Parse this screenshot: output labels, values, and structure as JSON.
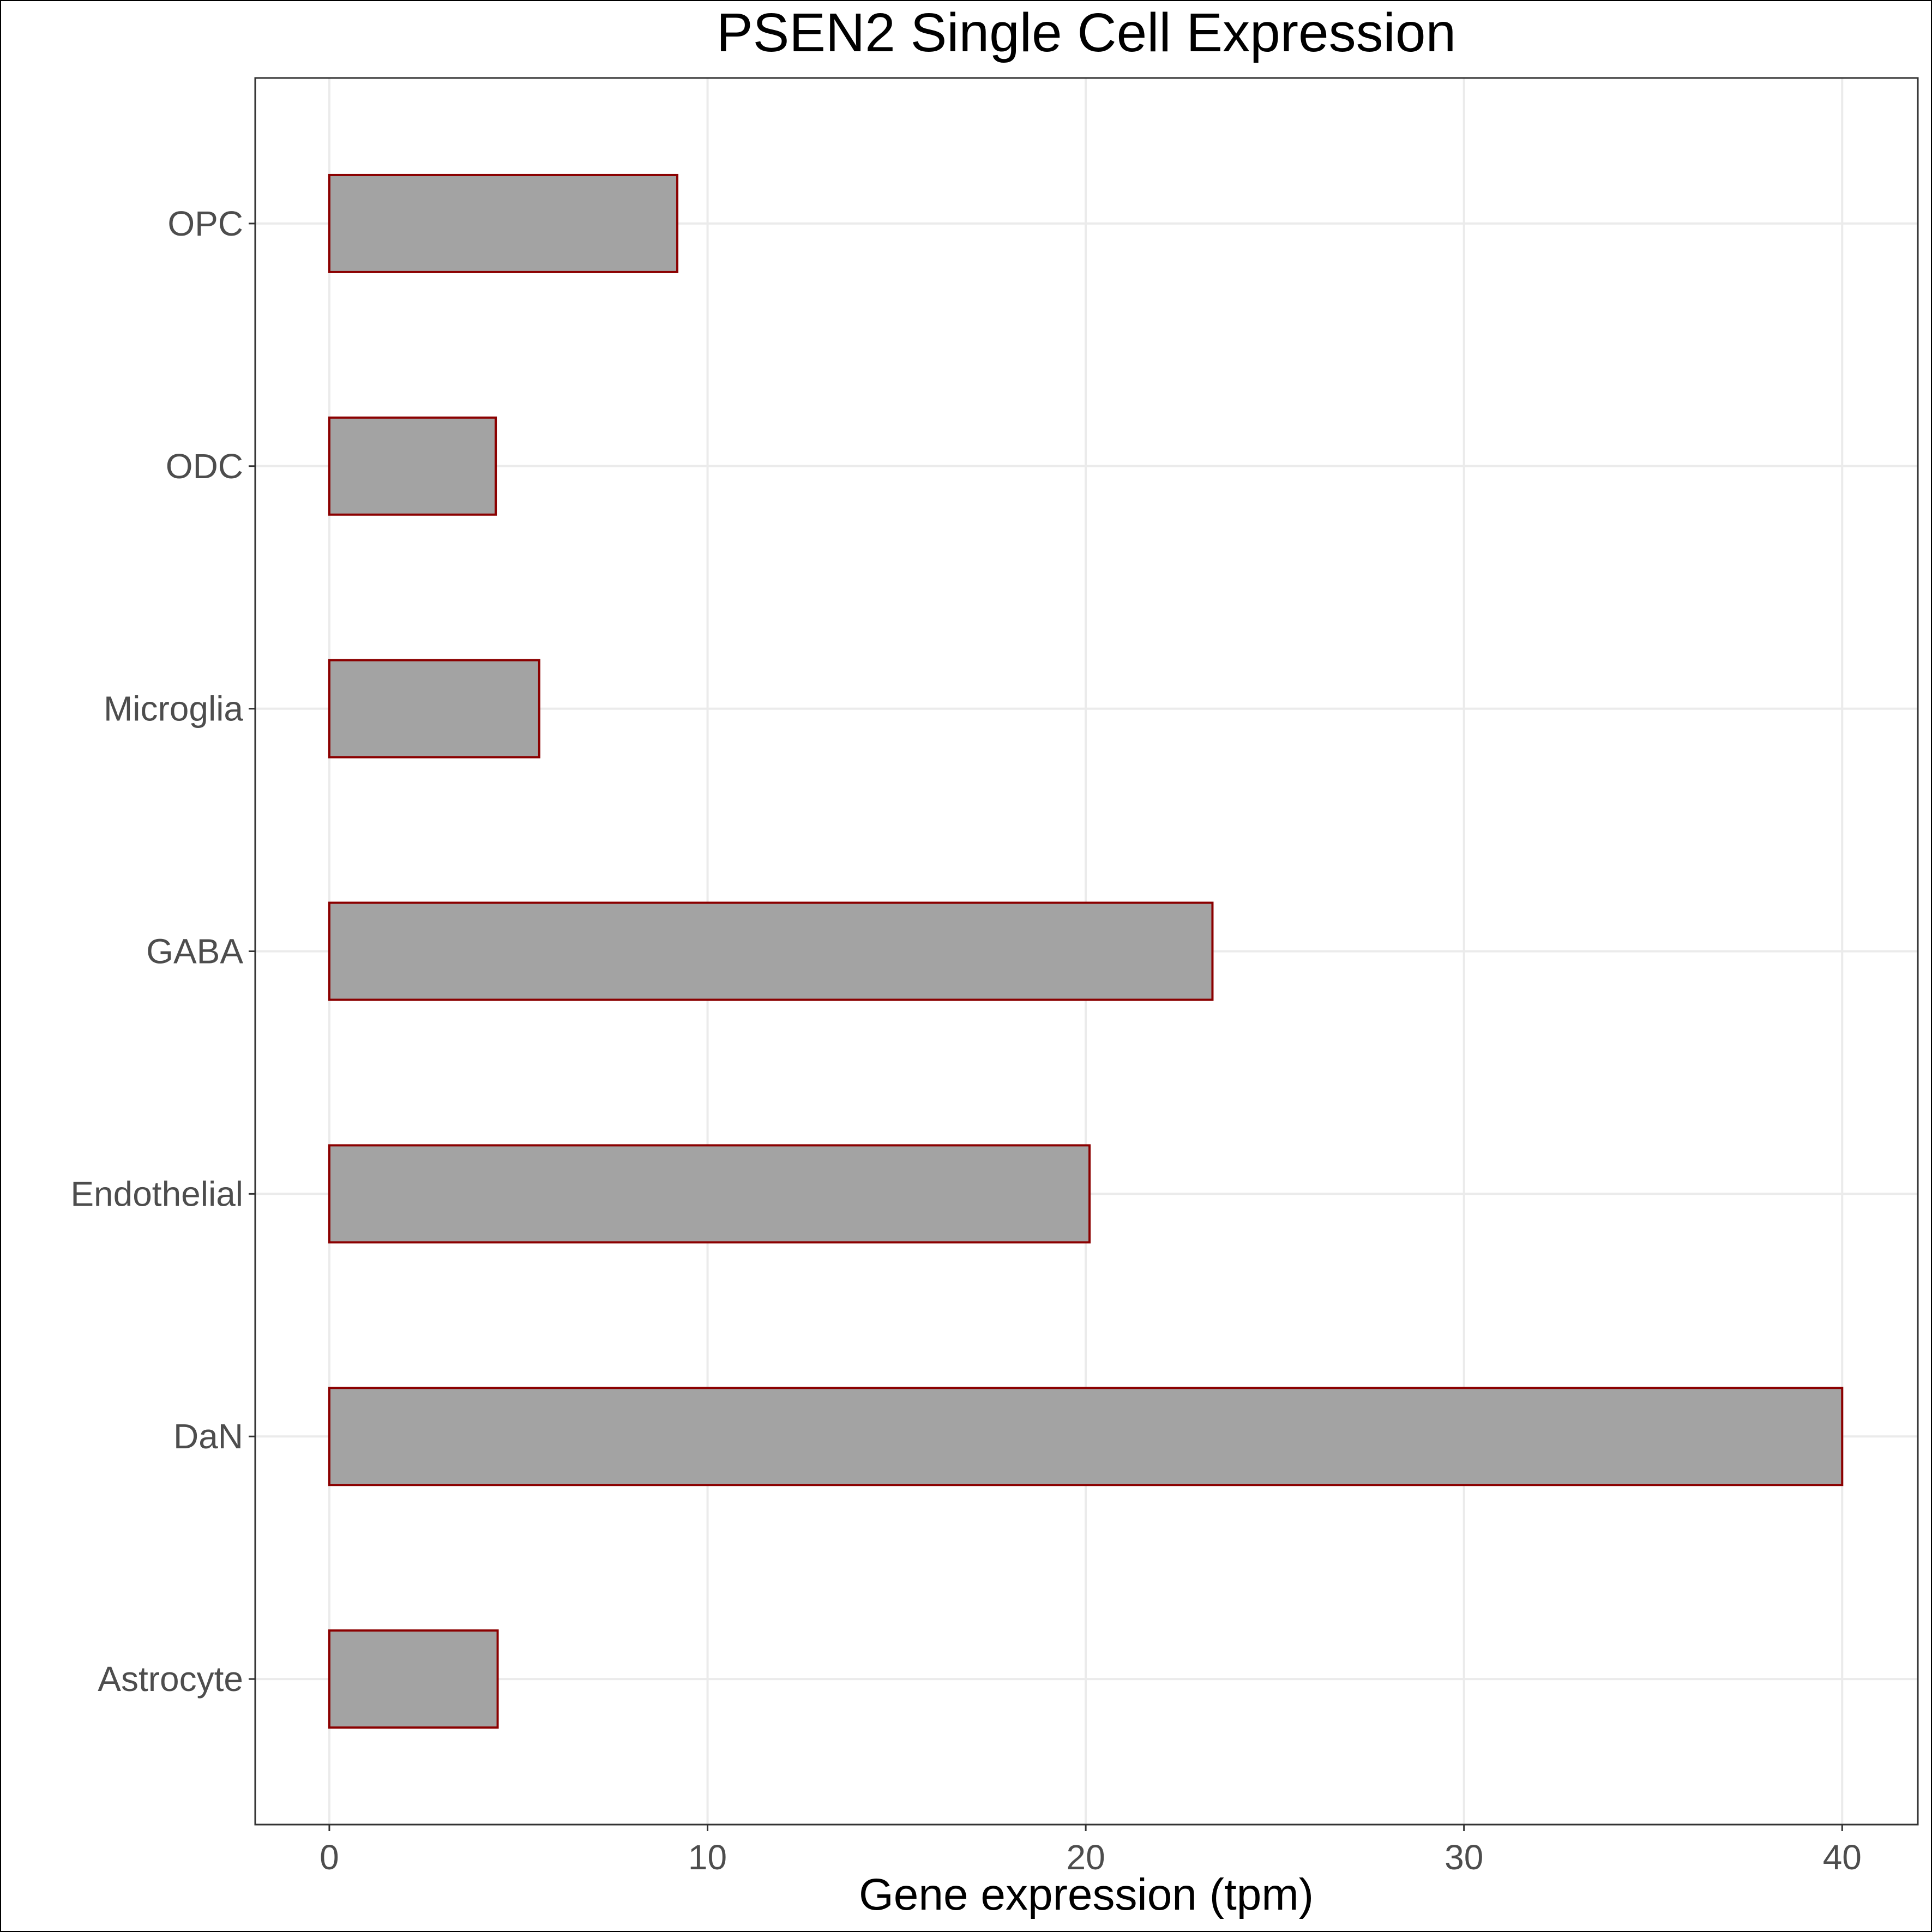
{
  "chart_data": {
    "type": "bar",
    "orientation": "horizontal",
    "title": "PSEN2 Single Cell Expression",
    "xlabel": "Gene expression (tpm)",
    "ylabel": "",
    "categories": [
      "Astrocyte",
      "DaN",
      "Endothelial",
      "GABA",
      "Microglia",
      "ODC",
      "OPC"
    ],
    "values": [
      4.45,
      40.0,
      20.1,
      23.35,
      5.55,
      4.4,
      9.2
    ],
    "xlim": [
      -1.96,
      42.0
    ],
    "xticks": [
      0,
      10,
      20,
      30,
      40
    ],
    "xtick_labels": [
      "0",
      "10",
      "20",
      "30",
      "40"
    ],
    "grid": true,
    "legend": "none",
    "colors": {
      "bar_fill": "#a3a3a3",
      "bar_stroke": "#8b0000",
      "grid": "#ebebeb",
      "panel_border": "#333333",
      "tick_label": "#4d4d4d"
    }
  }
}
